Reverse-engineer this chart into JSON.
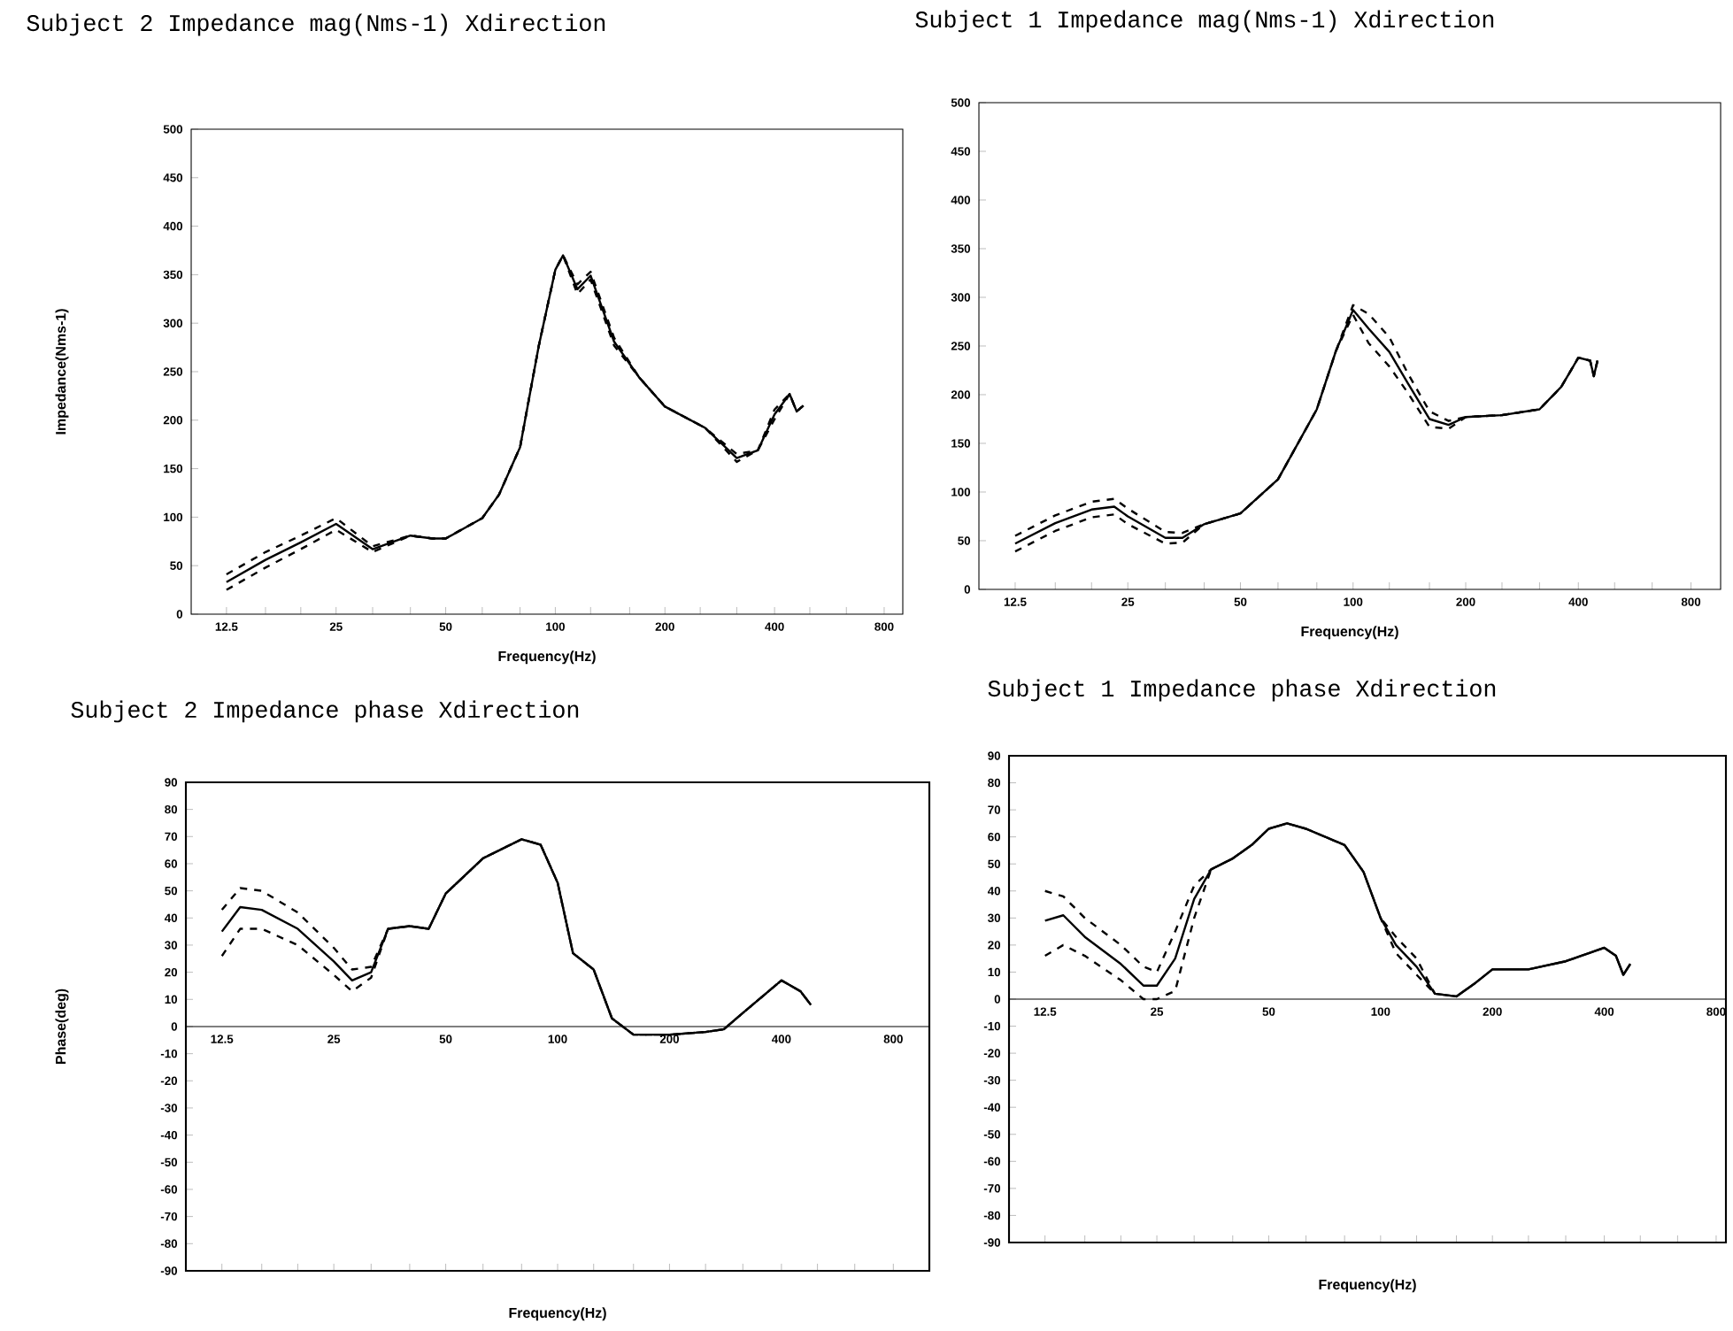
{
  "chart_data": [
    {
      "type": "line",
      "title": "Subject 2   Impedance mag(Nms-1) Xdirection",
      "xlabel": "Frequency(Hz)",
      "ylabel": "Impedance(Nms-1)",
      "log": "x",
      "marker": "none",
      "x": [
        12.5,
        16,
        20,
        25,
        31.5,
        40,
        46,
        50,
        63,
        70,
        80,
        90,
        100,
        105,
        115,
        125,
        145,
        170,
        200,
        258,
        315,
        360,
        400,
        440,
        460,
        480
      ],
      "series": [
        {
          "color": "#000000",
          "line_style": "solid",
          "values": [
            33,
            56,
            74,
            93,
            67,
            81,
            78,
            78,
            99,
            123,
            172,
            276,
            355,
            370,
            335,
            349,
            281,
            244,
            214,
            192,
            161,
            169,
            206,
            227,
            209,
            215
          ]
        },
        {
          "color": "#000000",
          "line_style": "dashed",
          "values": [
            41,
            64,
            81,
            99,
            70,
            81,
            78,
            78,
            99,
            123,
            172,
            276,
            355,
            370,
            340,
            353,
            285,
            244,
            214,
            192,
            165,
            169,
            211,
            227,
            209,
            215
          ]
        },
        {
          "color": "#000000",
          "line_style": "dashed",
          "values": [
            25,
            48,
            67,
            87,
            64,
            81,
            78,
            78,
            99,
            123,
            172,
            276,
            355,
            370,
            330,
            345,
            277,
            244,
            214,
            192,
            157,
            169,
            201,
            227,
            209,
            215
          ]
        }
      ],
      "xlim": [
        10,
        900
      ],
      "ylim": [
        0,
        500
      ],
      "xticks": [
        {
          "value": 12.5,
          "label": "12.5"
        },
        {
          "value": 16,
          "label": null
        },
        {
          "value": 20,
          "label": null
        },
        25,
        {
          "value": 31.5,
          "label": null
        },
        {
          "value": 40,
          "label": null
        },
        50,
        {
          "value": 63,
          "label": null
        },
        {
          "value": 80,
          "label": null
        },
        100,
        {
          "value": 125,
          "label": null
        },
        {
          "value": 160,
          "label": null
        },
        200,
        {
          "value": 250,
          "label": null
        },
        {
          "value": 315,
          "label": null
        },
        400,
        {
          "value": 500,
          "label": null
        },
        {
          "value": 630,
          "label": null
        },
        800
      ],
      "yticks": [
        0,
        50,
        100,
        150,
        200,
        250,
        300,
        350,
        400,
        450,
        500
      ]
    },
    {
      "type": "line",
      "title": "Subject 1   Impedance mag(Nms-1) Xdirection",
      "xlabel": "Frequency(Hz)",
      "log": "x",
      "marker": "none",
      "x": [
        12.5,
        16,
        20,
        23,
        25,
        31.5,
        35,
        40,
        50,
        63,
        80,
        90,
        100,
        110,
        125,
        140,
        160,
        180,
        200,
        250,
        315,
        360,
        400,
        430,
        440,
        450
      ],
      "series": [
        {
          "color": "#000000",
          "line_style": "solid",
          "values": [
            47,
            68,
            82,
            85,
            75,
            53,
            53,
            67,
            78,
            113,
            185,
            245,
            287,
            268,
            244,
            212,
            175,
            169,
            177,
            179,
            185,
            208,
            238,
            235,
            219,
            235
          ]
        },
        {
          "color": "#000000",
          "line_style": "dashed",
          "values": [
            55,
            76,
            90,
            93,
            83,
            59,
            58,
            67,
            78,
            113,
            185,
            245,
            292,
            283,
            259,
            222,
            183,
            173,
            177,
            179,
            185,
            208,
            238,
            235,
            219,
            235
          ]
        },
        {
          "color": "#000000",
          "line_style": "dashed",
          "values": [
            39,
            60,
            74,
            77,
            67,
            47,
            48,
            67,
            78,
            113,
            185,
            245,
            282,
            253,
            229,
            202,
            167,
            165,
            177,
            179,
            185,
            208,
            238,
            235,
            219,
            235
          ]
        }
      ],
      "xlim": [
        10,
        960
      ],
      "ylim": [
        0,
        500
      ],
      "xticks": [
        {
          "value": 12.5,
          "label": "12.5"
        },
        {
          "value": 16,
          "label": null
        },
        {
          "value": 20,
          "label": null
        },
        25,
        {
          "value": 31.5,
          "label": null
        },
        {
          "value": 40,
          "label": null
        },
        50,
        {
          "value": 63,
          "label": null
        },
        {
          "value": 80,
          "label": null
        },
        100,
        {
          "value": 125,
          "label": null
        },
        {
          "value": 160,
          "label": null
        },
        200,
        {
          "value": 250,
          "label": null
        },
        {
          "value": 315,
          "label": null
        },
        400,
        {
          "value": 500,
          "label": null
        },
        {
          "value": 630,
          "label": null
        },
        800
      ],
      "yticks": [
        0,
        50,
        100,
        150,
        200,
        250,
        300,
        350,
        400,
        450,
        500
      ]
    },
    {
      "type": "line",
      "title": "Subject 2   Impedance phase  Xdirection",
      "xlabel": "Frequency(Hz)",
      "ylabel": "Phase(deg)",
      "log": "x",
      "marker": "none",
      "x": [
        12.5,
        14,
        16,
        20,
        25,
        28,
        31.5,
        35,
        40,
        45,
        50,
        63,
        80,
        90,
        100,
        110,
        125,
        140,
        160,
        200,
        250,
        280,
        315,
        400,
        450,
        480
      ],
      "series": [
        {
          "color": "#000000",
          "line_style": "solid",
          "values": [
            35,
            44,
            43,
            36,
            24,
            17,
            20,
            36,
            37,
            36,
            49,
            62,
            69,
            67,
            53,
            27,
            21,
            3,
            -3,
            -3,
            -2,
            -1,
            5,
            17,
            13,
            8
          ]
        },
        {
          "color": "#000000",
          "line_style": "dashed",
          "values": [
            43,
            51,
            50,
            42,
            29,
            21,
            22,
            36,
            37,
            36,
            49,
            62,
            69,
            67,
            53,
            27,
            21,
            3,
            -3,
            -3,
            -2,
            -1,
            5,
            17,
            13,
            8
          ]
        },
        {
          "color": "#000000",
          "line_style": "dashed",
          "values": [
            26,
            36,
            36,
            30,
            19,
            13,
            18,
            36,
            37,
            36,
            49,
            62,
            69,
            67,
            53,
            27,
            21,
            3,
            -3,
            -3,
            -2,
            -1,
            5,
            17,
            13,
            8
          ]
        }
      ],
      "xlim": [
        10,
        1000
      ],
      "ylim": [
        -90,
        90
      ],
      "xticks": [
        {
          "value": 12.5,
          "label": "12.5"
        },
        {
          "value": 16,
          "label": null
        },
        {
          "value": 20,
          "label": null
        },
        25,
        {
          "value": 31.5,
          "label": null
        },
        {
          "value": 40,
          "label": null
        },
        50,
        {
          "value": 63,
          "label": null
        },
        {
          "value": 80,
          "label": null
        },
        100,
        {
          "value": 125,
          "label": null
        },
        {
          "value": 160,
          "label": null
        },
        200,
        {
          "value": 250,
          "label": null
        },
        {
          "value": 315,
          "label": null
        },
        400,
        {
          "value": 500,
          "label": null
        },
        {
          "value": 630,
          "label": null
        },
        800
      ],
      "yticks": [
        -90,
        -80,
        -70,
        -60,
        -50,
        -40,
        -30,
        -20,
        -10,
        0,
        10,
        20,
        30,
        40,
        50,
        60,
        70,
        80,
        90
      ]
    },
    {
      "type": "line",
      "title": "Subject 1   Impedance phase  Xdirection",
      "xlabel": "Frequency(Hz)",
      "log": "x",
      "marker": "none",
      "x": [
        12.5,
        14,
        16,
        20,
        23,
        25,
        28,
        31.5,
        35,
        40,
        45,
        50,
        56,
        63,
        80,
        90,
        100,
        110,
        125,
        140,
        160,
        180,
        200,
        250,
        315,
        400,
        430,
        450,
        470
      ],
      "series": [
        {
          "color": "#000000",
          "line_style": "solid",
          "values": [
            29,
            31,
            23,
            13,
            5,
            5,
            15,
            37,
            48,
            52,
            57,
            63,
            65,
            63,
            57,
            47,
            30,
            20,
            12,
            2,
            1,
            6,
            11,
            11,
            14,
            19,
            16,
            9,
            13
          ]
        },
        {
          "color": "#000000",
          "line_style": "dashed",
          "values": [
            40,
            38,
            30,
            20,
            12,
            10,
            25,
            42,
            48,
            52,
            57,
            63,
            65,
            63,
            57,
            47,
            30,
            23,
            15,
            2,
            1,
            6,
            11,
            11,
            14,
            19,
            16,
            9,
            13
          ]
        },
        {
          "color": "#000000",
          "line_style": "dashed",
          "values": [
            16,
            20,
            16,
            7,
            0,
            0,
            3,
            30,
            48,
            52,
            57,
            63,
            65,
            63,
            57,
            47,
            30,
            17,
            9,
            2,
            1,
            6,
            11,
            11,
            14,
            19,
            16,
            9,
            13
          ]
        }
      ],
      "xlim": [
        10,
        850
      ],
      "ylim": [
        -90,
        90
      ],
      "xticks": [
        {
          "value": 12.5,
          "label": "12.5"
        },
        {
          "value": 16,
          "label": null
        },
        {
          "value": 20,
          "label": null
        },
        25,
        {
          "value": 31.5,
          "label": null
        },
        {
          "value": 40,
          "label": null
        },
        50,
        {
          "value": 63,
          "label": null
        },
        {
          "value": 80,
          "label": null
        },
        100,
        {
          "value": 125,
          "label": null
        },
        {
          "value": 160,
          "label": null
        },
        200,
        {
          "value": 250,
          "label": null
        },
        {
          "value": 315,
          "label": null
        },
        400,
        {
          "value": 500,
          "label": null
        },
        {
          "value": 630,
          "label": null
        },
        800
      ],
      "yticks": [
        -90,
        -80,
        -70,
        -60,
        -50,
        -40,
        -30,
        -20,
        -10,
        0,
        10,
        20,
        30,
        40,
        50,
        60,
        70,
        80,
        90
      ]
    }
  ]
}
